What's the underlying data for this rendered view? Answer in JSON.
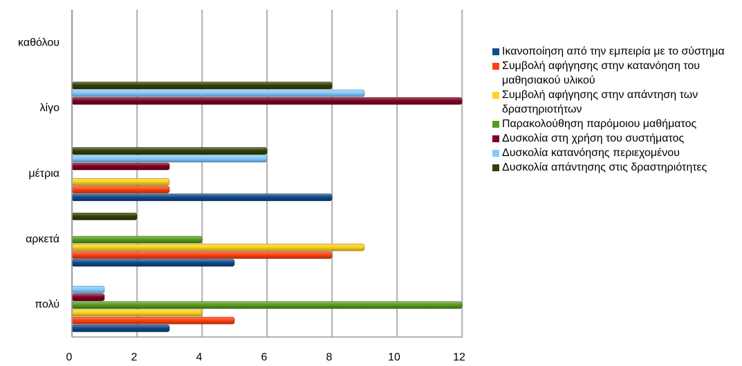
{
  "chart_data": {
    "type": "bar",
    "orientation": "horizontal",
    "categories": [
      "καθόλου",
      "λίγο",
      "μέτρια",
      "αρκετά",
      "πολύ"
    ],
    "xlim": [
      0,
      12
    ],
    "xticks": [
      0,
      2,
      4,
      6,
      8,
      10,
      12
    ],
    "grid": true,
    "legend_position": "right",
    "series": [
      {
        "name": "Ικανοποίηση από την εμπειρία με το σύστημα",
        "color": "#0f4a8a",
        "values": [
          0,
          0,
          8,
          5,
          3
        ]
      },
      {
        "name": "Συμβολή αφήγησης στην κατανόηση του μαθησιακού υλικού",
        "color": "#ff420e",
        "values": [
          0,
          0,
          3,
          8,
          5
        ]
      },
      {
        "name": "Συμβολή αφήγησης στην απάντηση των δραστηριοτήτων",
        "color": "#ffd320",
        "values": [
          0,
          0,
          3,
          9,
          4
        ]
      },
      {
        "name": "Παρακολούθηση παρόμοιου μαθήματος",
        "color": "#579d1c",
        "values": [
          0,
          0,
          0,
          4,
          12
        ]
      },
      {
        "name": "Δυσκολία στη χρήση του συστήματος",
        "color": "#7e0021",
        "values": [
          0,
          12,
          3,
          0,
          1
        ]
      },
      {
        "name": "Δυσκολία κατανόησης περιεχομένου",
        "color": "#83caff",
        "values": [
          0,
          9,
          6,
          0,
          1
        ]
      },
      {
        "name": "Δυσκολία απάντησης στις δραστηριότητες",
        "color": "#314004",
        "values": [
          0,
          8,
          6,
          2,
          0
        ]
      }
    ]
  }
}
